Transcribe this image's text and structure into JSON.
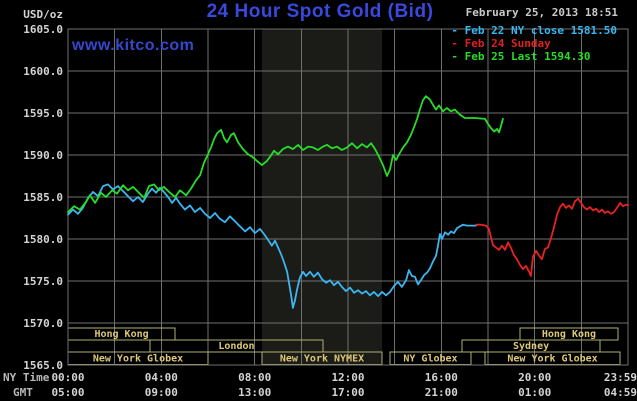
{
  "header": {
    "title": "24 Hour Spot Gold (Bid)",
    "datetime": "February 25, 2013 18:51",
    "watermark": "www.kitco.com"
  },
  "legend": {
    "items": [
      {
        "label": "- Feb 22 NY close 1581.50",
        "color": "#3ab6f0"
      },
      {
        "label": "- Feb 24 Sunday",
        "color": "#e02020"
      },
      {
        "label": "- Feb 25 Last 1594.30",
        "color": "#28dd28"
      }
    ]
  },
  "axis": {
    "ylabel": "USD/oz",
    "ny_time_label": "NY Time",
    "gmt_label": "GMT"
  },
  "colors": {
    "title": "#3949dd",
    "watermark": "#3647cf",
    "grid": "#6f6f6f",
    "band": "#1b1b18",
    "session_border": "#b0b070",
    "session_text": "#dcc878",
    "axis_text": "#d4d4d4"
  },
  "chart_data": {
    "type": "line",
    "title": "24 Hour Spot Gold (Bid)",
    "ylabel": "USD/oz",
    "ylim": [
      1565,
      1605
    ],
    "ytick_step": 5,
    "x_hours": [
      0,
      24
    ],
    "grid_step_hours": 2,
    "legend_position": "top-right",
    "grid": true,
    "shaded_band_hours": [
      8.31,
      13.46
    ],
    "x_ticks": [
      {
        "hour": 0,
        "ny": "00:00",
        "gmt": "05:00"
      },
      {
        "hour": 4,
        "ny": "04:00",
        "gmt": "09:00"
      },
      {
        "hour": 8,
        "ny": "08:00",
        "gmt": "13:00"
      },
      {
        "hour": 12,
        "ny": "12:00",
        "gmt": "17:00"
      },
      {
        "hour": 16,
        "ny": "16:00",
        "gmt": "21:00"
      },
      {
        "hour": 20,
        "ny": "20:00",
        "gmt": "01:00"
      },
      {
        "hour": 24,
        "ny": "23:59",
        "gmt": "04:59"
      }
    ],
    "sessions": [
      {
        "row": 0,
        "label": "Hong Kong",
        "from_hour": 0.0,
        "to_hour": 4.59
      },
      {
        "row": 0,
        "label": "Hong Kong",
        "from_hour": 19.37,
        "to_hour": 23.57
      },
      {
        "row": 1,
        "label": "",
        "from_hour": 0.0,
        "to_hour": 3.51
      },
      {
        "row": 1,
        "label": "London",
        "from_hour": 3.51,
        "to_hour": 10.93
      },
      {
        "row": 1,
        "label": "Sydney",
        "from_hour": 16.89,
        "to_hour": 22.8
      },
      {
        "row": 2,
        "label": "New York Globex",
        "from_hour": 0.0,
        "to_hour": 6.0
      },
      {
        "row": 2,
        "label": "New York NYMEX",
        "from_hour": 8.31,
        "to_hour": 13.46
      },
      {
        "row": 2,
        "label": "NY Globex",
        "from_hour": 13.8,
        "to_hour": 17.27
      },
      {
        "row": 2,
        "label": "New York Globex",
        "from_hour": 17.87,
        "to_hour": 23.66
      }
    ],
    "series": [
      {
        "name": "Feb 22 NY close 1581.50",
        "color": "#3ab6f0",
        "points": [
          [
            0,
            1582.9
          ],
          [
            0.21,
            1583.5
          ],
          [
            0.43,
            1583.0
          ],
          [
            0.64,
            1583.7
          ],
          [
            0.86,
            1584.9
          ],
          [
            1.07,
            1585.6
          ],
          [
            1.29,
            1585.1
          ],
          [
            1.5,
            1586.3
          ],
          [
            1.71,
            1586.5
          ],
          [
            1.93,
            1585.9
          ],
          [
            2.14,
            1586.3
          ],
          [
            2.36,
            1585.7
          ],
          [
            2.57,
            1585.1
          ],
          [
            2.79,
            1584.5
          ],
          [
            3.0,
            1585.0
          ],
          [
            3.21,
            1584.4
          ],
          [
            3.43,
            1585.4
          ],
          [
            3.6,
            1586.0
          ],
          [
            3.77,
            1585.5
          ],
          [
            3.94,
            1586.1
          ],
          [
            4.11,
            1585.6
          ],
          [
            4.29,
            1585.0
          ],
          [
            4.46,
            1584.3
          ],
          [
            4.63,
            1584.9
          ],
          [
            4.8,
            1584.2
          ],
          [
            5.01,
            1583.5
          ],
          [
            5.23,
            1584.0
          ],
          [
            5.44,
            1583.2
          ],
          [
            5.66,
            1583.7
          ],
          [
            5.87,
            1583.0
          ],
          [
            6.09,
            1582.5
          ],
          [
            6.3,
            1583.1
          ],
          [
            6.51,
            1582.4
          ],
          [
            6.73,
            1582.0
          ],
          [
            6.94,
            1582.7
          ],
          [
            7.16,
            1582.1
          ],
          [
            7.37,
            1581.5
          ],
          [
            7.59,
            1580.9
          ],
          [
            7.8,
            1581.4
          ],
          [
            8.01,
            1580.7
          ],
          [
            8.23,
            1581.2
          ],
          [
            8.4,
            1580.6
          ],
          [
            8.57,
            1579.9
          ],
          [
            8.74,
            1579.2
          ],
          [
            8.87,
            1579.8
          ],
          [
            9.0,
            1579.0
          ],
          [
            9.13,
            1578.2
          ],
          [
            9.26,
            1577.2
          ],
          [
            9.39,
            1576.1
          ],
          [
            9.47,
            1574.8
          ],
          [
            9.56,
            1573.3
          ],
          [
            9.64,
            1571.8
          ],
          [
            9.73,
            1572.7
          ],
          [
            9.81,
            1573.9
          ],
          [
            9.94,
            1575.4
          ],
          [
            10.07,
            1576.1
          ],
          [
            10.2,
            1575.6
          ],
          [
            10.37,
            1576.1
          ],
          [
            10.54,
            1575.5
          ],
          [
            10.71,
            1576.0
          ],
          [
            10.89,
            1575.2
          ],
          [
            11.06,
            1574.8
          ],
          [
            11.23,
            1575.1
          ],
          [
            11.4,
            1574.5
          ],
          [
            11.57,
            1574.9
          ],
          [
            11.74,
            1574.3
          ],
          [
            11.91,
            1573.8
          ],
          [
            12.09,
            1574.2
          ],
          [
            12.26,
            1573.6
          ],
          [
            12.43,
            1573.9
          ],
          [
            12.6,
            1573.5
          ],
          [
            12.77,
            1573.8
          ],
          [
            12.94,
            1573.3
          ],
          [
            13.11,
            1573.7
          ],
          [
            13.29,
            1573.2
          ],
          [
            13.46,
            1573.7
          ],
          [
            13.63,
            1573.3
          ],
          [
            13.8,
            1573.7
          ],
          [
            13.97,
            1574.4
          ],
          [
            14.14,
            1574.9
          ],
          [
            14.31,
            1574.3
          ],
          [
            14.49,
            1575.1
          ],
          [
            14.61,
            1576.3
          ],
          [
            14.74,
            1575.6
          ],
          [
            14.87,
            1575.5
          ],
          [
            15.0,
            1574.6
          ],
          [
            15.13,
            1575.1
          ],
          [
            15.26,
            1575.7
          ],
          [
            15.39,
            1576.0
          ],
          [
            15.51,
            1576.5
          ],
          [
            15.64,
            1577.3
          ],
          [
            15.77,
            1578.0
          ],
          [
            15.86,
            1579.3
          ],
          [
            15.94,
            1580.6
          ],
          [
            16.03,
            1580.0
          ],
          [
            16.16,
            1580.8
          ],
          [
            16.29,
            1580.5
          ],
          [
            16.41,
            1580.9
          ],
          [
            16.54,
            1580.7
          ],
          [
            16.67,
            1581.3
          ],
          [
            16.8,
            1581.5
          ],
          [
            16.93,
            1581.7
          ],
          [
            17.1,
            1581.6
          ],
          [
            17.3,
            1581.6
          ],
          [
            17.49,
            1581.6
          ]
        ]
      },
      {
        "name": "Feb 24 Sunday",
        "color": "#e82222",
        "points": [
          [
            17.49,
            1581.7
          ],
          [
            17.7,
            1581.7
          ],
          [
            17.91,
            1581.6
          ],
          [
            18.04,
            1581.2
          ],
          [
            18.13,
            1580.2
          ],
          [
            18.21,
            1579.3
          ],
          [
            18.34,
            1579.0
          ],
          [
            18.47,
            1578.7
          ],
          [
            18.6,
            1579.2
          ],
          [
            18.73,
            1578.7
          ],
          [
            18.86,
            1579.6
          ],
          [
            18.99,
            1578.9
          ],
          [
            19.11,
            1578.1
          ],
          [
            19.24,
            1577.6
          ],
          [
            19.37,
            1576.9
          ],
          [
            19.5,
            1576.4
          ],
          [
            19.63,
            1576.8
          ],
          [
            19.76,
            1576.1
          ],
          [
            19.84,
            1575.6
          ],
          [
            19.93,
            1577.9
          ],
          [
            20.06,
            1578.6
          ],
          [
            20.19,
            1578.0
          ],
          [
            20.31,
            1577.6
          ],
          [
            20.44,
            1578.8
          ],
          [
            20.57,
            1579.0
          ],
          [
            20.7,
            1580.1
          ],
          [
            20.83,
            1581.4
          ],
          [
            20.96,
            1582.9
          ],
          [
            21.09,
            1583.8
          ],
          [
            21.21,
            1584.2
          ],
          [
            21.34,
            1583.7
          ],
          [
            21.47,
            1584.0
          ],
          [
            21.6,
            1583.6
          ],
          [
            21.73,
            1584.5
          ],
          [
            21.86,
            1584.8
          ],
          [
            21.99,
            1584.3
          ],
          [
            22.11,
            1583.8
          ],
          [
            22.24,
            1583.5
          ],
          [
            22.37,
            1583.8
          ],
          [
            22.5,
            1583.4
          ],
          [
            22.63,
            1583.6
          ],
          [
            22.76,
            1583.2
          ],
          [
            22.89,
            1583.5
          ],
          [
            23.01,
            1583.1
          ],
          [
            23.14,
            1583.3
          ],
          [
            23.27,
            1583.0
          ],
          [
            23.4,
            1583.2
          ],
          [
            23.53,
            1583.7
          ],
          [
            23.66,
            1584.3
          ],
          [
            23.79,
            1583.9
          ],
          [
            23.91,
            1584.1
          ],
          [
            24.0,
            1584.0
          ]
        ]
      },
      {
        "name": "Feb 25 Last 1594.30",
        "color": "#28dd28",
        "points": [
          [
            0,
            1583.2
          ],
          [
            0.26,
            1583.9
          ],
          [
            0.51,
            1583.5
          ],
          [
            0.77,
            1584.4
          ],
          [
            0.94,
            1585.2
          ],
          [
            1.16,
            1584.3
          ],
          [
            1.41,
            1585.5
          ],
          [
            1.63,
            1585.0
          ],
          [
            1.89,
            1585.8
          ],
          [
            2.1,
            1585.4
          ],
          [
            2.36,
            1586.4
          ],
          [
            2.57,
            1585.8
          ],
          [
            2.79,
            1586.2
          ],
          [
            3.04,
            1585.5
          ],
          [
            3.26,
            1584.9
          ],
          [
            3.47,
            1586.3
          ],
          [
            3.69,
            1586.5
          ],
          [
            3.9,
            1585.8
          ],
          [
            4.11,
            1586.2
          ],
          [
            4.37,
            1585.5
          ],
          [
            4.59,
            1585.0
          ],
          [
            4.8,
            1585.8
          ],
          [
            5.06,
            1585.2
          ],
          [
            5.27,
            1586.0
          ],
          [
            5.49,
            1587.0
          ],
          [
            5.66,
            1587.6
          ],
          [
            5.83,
            1589.1
          ],
          [
            6.0,
            1590.1
          ],
          [
            6.13,
            1590.9
          ],
          [
            6.26,
            1591.9
          ],
          [
            6.39,
            1592.6
          ],
          [
            6.56,
            1593.0
          ],
          [
            6.69,
            1592.0
          ],
          [
            6.81,
            1591.5
          ],
          [
            6.99,
            1592.4
          ],
          [
            7.11,
            1592.6
          ],
          [
            7.29,
            1591.5
          ],
          [
            7.5,
            1590.7
          ],
          [
            7.71,
            1590.1
          ],
          [
            7.89,
            1589.8
          ],
          [
            8.1,
            1589.3
          ],
          [
            8.31,
            1588.8
          ],
          [
            8.53,
            1589.3
          ],
          [
            8.66,
            1589.8
          ],
          [
            8.83,
            1590.5
          ],
          [
            9.0,
            1590.1
          ],
          [
            9.21,
            1590.7
          ],
          [
            9.43,
            1591.0
          ],
          [
            9.64,
            1590.7
          ],
          [
            9.86,
            1591.2
          ],
          [
            10.07,
            1590.6
          ],
          [
            10.29,
            1591.0
          ],
          [
            10.5,
            1590.9
          ],
          [
            10.71,
            1590.6
          ],
          [
            10.93,
            1591.0
          ],
          [
            11.1,
            1591.2
          ],
          [
            11.31,
            1590.8
          ],
          [
            11.53,
            1591.0
          ],
          [
            11.74,
            1590.6
          ],
          [
            11.96,
            1590.9
          ],
          [
            12.17,
            1591.4
          ],
          [
            12.39,
            1590.8
          ],
          [
            12.6,
            1591.3
          ],
          [
            12.81,
            1590.9
          ],
          [
            12.99,
            1591.4
          ],
          [
            13.16,
            1590.7
          ],
          [
            13.33,
            1589.8
          ],
          [
            13.5,
            1588.8
          ],
          [
            13.67,
            1587.5
          ],
          [
            13.8,
            1588.3
          ],
          [
            13.93,
            1590.0
          ],
          [
            14.06,
            1589.4
          ],
          [
            14.19,
            1590.1
          ],
          [
            14.36,
            1590.9
          ],
          [
            14.53,
            1591.5
          ],
          [
            14.7,
            1592.4
          ],
          [
            14.83,
            1593.3
          ],
          [
            14.96,
            1594.3
          ],
          [
            15.09,
            1595.5
          ],
          [
            15.21,
            1596.5
          ],
          [
            15.34,
            1597.0
          ],
          [
            15.51,
            1596.6
          ],
          [
            15.64,
            1596.0
          ],
          [
            15.77,
            1595.4
          ],
          [
            15.9,
            1595.9
          ],
          [
            16.07,
            1595.2
          ],
          [
            16.24,
            1595.6
          ],
          [
            16.41,
            1595.2
          ],
          [
            16.58,
            1595.4
          ],
          [
            16.8,
            1594.8
          ],
          [
            17.01,
            1594.4
          ],
          [
            17.44,
            1594.4
          ],
          [
            17.87,
            1594.3
          ],
          [
            18.0,
            1593.7
          ],
          [
            18.13,
            1593.2
          ],
          [
            18.26,
            1592.8
          ],
          [
            18.39,
            1593.1
          ],
          [
            18.47,
            1592.7
          ],
          [
            18.56,
            1593.5
          ],
          [
            18.64,
            1594.3
          ]
        ]
      }
    ]
  }
}
